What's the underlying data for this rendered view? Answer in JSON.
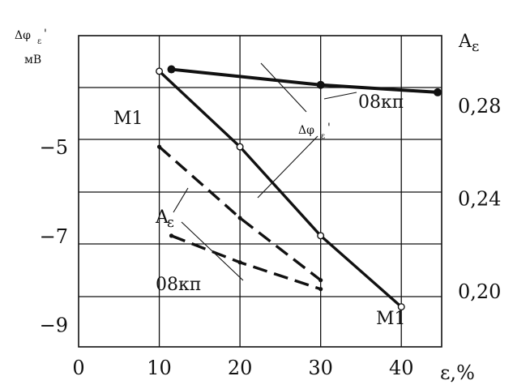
{
  "chart_data": {
    "type": "line",
    "x": [
      10,
      20,
      30,
      40
    ],
    "xlim": [
      0,
      45
    ],
    "xlabel": "ε,%",
    "left_axis": {
      "label_main": "Δφ",
      "label_sub": "ε",
      "label_prime": "'",
      "unit": "мВ",
      "ticks": [
        -5,
        -7,
        -9
      ],
      "tick_labels": [
        "−5",
        "−7",
        "−9"
      ],
      "range": [
        -9.5,
        -2.5
      ]
    },
    "right_axis": {
      "label_main": "A",
      "label_sub": "ε",
      "ticks": [
        0.28,
        0.24,
        0.2
      ],
      "tick_labels": [
        "0,28",
        "0,24",
        "0,20"
      ],
      "range": [
        0.176,
        0.31
      ]
    },
    "x_tick_labels": [
      "0",
      "10",
      "20",
      "30",
      "40"
    ],
    "series": [
      {
        "name": "A_ε 08кп",
        "axis": "right",
        "style": "solid-thick",
        "marker": "filled-circle",
        "points": [
          [
            11.5,
            0.2955
          ],
          [
            30,
            0.2888
          ],
          [
            44.5,
            0.2856
          ]
        ]
      },
      {
        "name": "Δφ_ε' M1",
        "axis": "left",
        "style": "solid",
        "marker": "open-circle",
        "points": [
          [
            10,
            -3.3
          ],
          [
            20,
            -5.0
          ],
          [
            30,
            -7.0
          ],
          [
            40,
            -8.6
          ]
        ]
      },
      {
        "name": "Δφ_ε' M1 (dashed)",
        "axis": "left",
        "style": "dashed",
        "marker": "small-filled",
        "points": [
          [
            10,
            -5.0
          ],
          [
            20,
            -6.6
          ],
          [
            30,
            -8.0
          ]
        ]
      },
      {
        "name": "Δφ_ε' 08кп (dashed)",
        "axis": "left",
        "style": "dashed",
        "marker": "small-filled",
        "points": [
          [
            11.5,
            -7.0
          ],
          [
            20,
            -7.6
          ],
          [
            30,
            -8.2
          ]
        ]
      }
    ],
    "annotations": {
      "m1_upper": "M1",
      "m1_lower": "M1",
      "k08_upper": "08кп",
      "k08_lower": "08кп",
      "a_eps_main": "A",
      "a_eps_sub": "ε",
      "dphi_main": "Δφ",
      "dphi_sub": "ε",
      "dphi_prime": "'"
    },
    "grid": true
  }
}
